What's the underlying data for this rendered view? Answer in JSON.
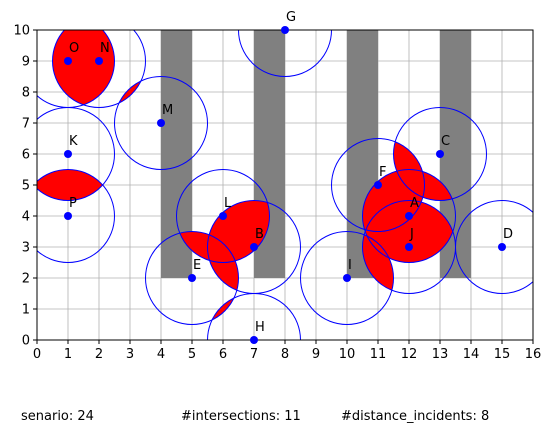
{
  "chart_data": {
    "type": "scatter",
    "xlim": [
      0,
      16
    ],
    "ylim": [
      0,
      10
    ],
    "x_ticks": [
      0,
      1,
      2,
      3,
      4,
      5,
      6,
      7,
      8,
      9,
      10,
      11,
      12,
      13,
      14,
      15,
      16
    ],
    "y_ticks": [
      0,
      1,
      2,
      3,
      4,
      5,
      6,
      7,
      8,
      9,
      10
    ],
    "grid": true,
    "obstacle_color": "#808080",
    "point_color": "#0000ff",
    "circle_color": "#0000ff",
    "intersection_color": "#ff0000",
    "circle_radius": 1.5,
    "obstacles": [
      {
        "x0": 4,
        "x1": 5,
        "y0": 2,
        "y1": 10
      },
      {
        "x0": 7,
        "x1": 8,
        "y0": 2,
        "y1": 10
      },
      {
        "x0": 10,
        "x1": 11,
        "y0": 2,
        "y1": 10
      },
      {
        "x0": 13,
        "x1": 14,
        "y0": 2,
        "y1": 10
      }
    ],
    "points": [
      {
        "label": "O",
        "x": 1,
        "y": 9
      },
      {
        "label": "N",
        "x": 2,
        "y": 9
      },
      {
        "label": "G",
        "x": 8,
        "y": 10
      },
      {
        "label": "M",
        "x": 4,
        "y": 7
      },
      {
        "label": "K",
        "x": 1,
        "y": 6
      },
      {
        "label": "C",
        "x": 13,
        "y": 6
      },
      {
        "label": "F",
        "x": 11,
        "y": 5
      },
      {
        "label": "P",
        "x": 1,
        "y": 4
      },
      {
        "label": "L",
        "x": 6,
        "y": 4
      },
      {
        "label": "A",
        "x": 12,
        "y": 4
      },
      {
        "label": "B",
        "x": 7,
        "y": 3
      },
      {
        "label": "J",
        "x": 12,
        "y": 3
      },
      {
        "label": "D",
        "x": 15,
        "y": 3
      },
      {
        "label": "E",
        "x": 5,
        "y": 2
      },
      {
        "label": "I",
        "x": 10,
        "y": 2
      },
      {
        "label": "H",
        "x": 7,
        "y": 0
      }
    ]
  },
  "footer": {
    "scenario": "senario: 24",
    "intersections": "#intersections: 11",
    "distance_incidents": "#distance_incidents: 8"
  }
}
